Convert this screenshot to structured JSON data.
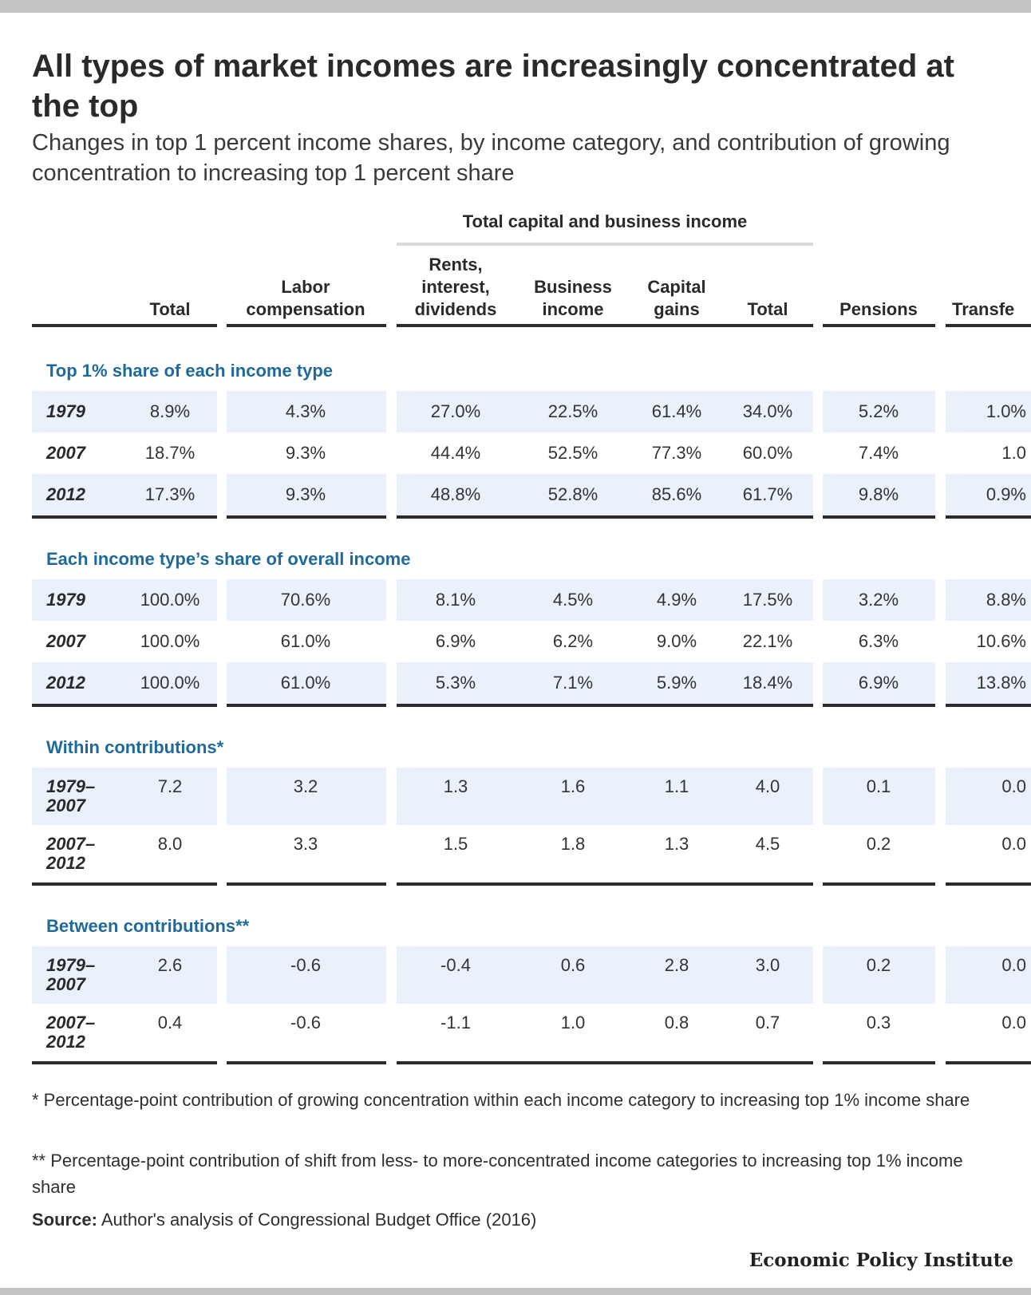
{
  "title": "All types of market incomes are increasingly concentrated at the top",
  "subtitle": "Changes in top 1 percent income shares, by income category, and contribution of growing concentration to increasing top 1 percent share",
  "group_header": "Total capital and business income",
  "footnotes": [
    "* Percentage-point contribution of growing concentration within each income category to increasing top 1% income share",
    "** Percentage-point contribution of shift from less- to more-concentrated income categories to increasing top 1% income share"
  ],
  "source_label": "Source:",
  "source_text": " Author's analysis of Congressional Budget Office (2016)",
  "brand": "Economic Policy Institute",
  "chart_data": {
    "type": "table",
    "columns": [
      "Total",
      "Labor\ncompensation",
      "Rents,\ninterest,\ndividends",
      "Business\nincome",
      "Capital\ngains",
      "Total",
      "Pensions",
      "Transfe"
    ],
    "sections": [
      {
        "title": "Top 1% share of each income type",
        "rows": [
          {
            "label": "1979",
            "values": [
              "8.9%",
              "4.3%",
              "27.0%",
              "22.5%",
              "61.4%",
              "34.0%",
              "5.2%",
              "1.0%"
            ]
          },
          {
            "label": "2007",
            "values": [
              "18.7%",
              "9.3%",
              "44.4%",
              "52.5%",
              "77.3%",
              "60.0%",
              "7.4%",
              "1.0"
            ]
          },
          {
            "label": "2012",
            "values": [
              "17.3%",
              "9.3%",
              "48.8%",
              "52.8%",
              "85.6%",
              "61.7%",
              "9.8%",
              "0.9%"
            ]
          }
        ]
      },
      {
        "title": "Each income type’s share of overall income",
        "rows": [
          {
            "label": "1979",
            "values": [
              "100.0%",
              "70.6%",
              "8.1%",
              "4.5%",
              "4.9%",
              "17.5%",
              "3.2%",
              "8.8%"
            ]
          },
          {
            "label": "2007",
            "values": [
              "100.0%",
              "61.0%",
              "6.9%",
              "6.2%",
              "9.0%",
              "22.1%",
              "6.3%",
              "10.6%"
            ]
          },
          {
            "label": "2012",
            "values": [
              "100.0%",
              "61.0%",
              "5.3%",
              "7.1%",
              "5.9%",
              "18.4%",
              "6.9%",
              "13.8%"
            ]
          }
        ]
      },
      {
        "title": "Within contributions*",
        "rows": [
          {
            "label": "1979–\n2007",
            "values": [
              "7.2",
              "3.2",
              "1.3",
              "1.6",
              "1.1",
              "4.0",
              "0.1",
              "0.0"
            ]
          },
          {
            "label": "2007–\n2012",
            "values": [
              "8.0",
              "3.3",
              "1.5",
              "1.8",
              "1.3",
              "4.5",
              "0.2",
              "0.0"
            ]
          }
        ]
      },
      {
        "title": "Between contributions**",
        "rows": [
          {
            "label": "1979–\n2007",
            "values": [
              "2.6",
              "-0.6",
              "-0.4",
              "0.6",
              "2.8",
              "3.0",
              "0.2",
              "0.0"
            ]
          },
          {
            "label": "2007–\n2012",
            "values": [
              "0.4",
              "-0.6",
              "-1.1",
              "1.0",
              "0.8",
              "0.7",
              "0.3",
              "0.0"
            ]
          }
        ]
      }
    ]
  }
}
